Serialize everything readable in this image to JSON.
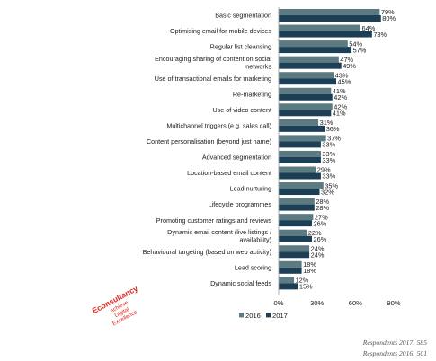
{
  "chart_data": {
    "type": "bar",
    "orientation": "horizontal",
    "categories": [
      "Basic segmentation",
      "Optimising email for mobile devices",
      "Regular list cleansing",
      "Encouraging sharing of content on social networks",
      "Use of transactional emails for marketing",
      "Re-marketing",
      "Use of video content",
      "Multichannel triggers (e.g. sales call)",
      "Content personalisation (beyond just name)",
      "Advanced segmentation",
      "Location-based email content",
      "Lead nurturing",
      "Lifecycle programmes",
      "Promoting customer ratings and reviews",
      "Dynamic email content (live listings / availability)",
      "Behavioural targeting (based on web activity)",
      "Lead scoring",
      "Dynamic social feeds"
    ],
    "series": [
      {
        "name": "2016",
        "color": "#5b7a82",
        "values": [
          79,
          64,
          54,
          47,
          43,
          41,
          42,
          31,
          37,
          33,
          29,
          35,
          28,
          27,
          22,
          24,
          18,
          12
        ]
      },
      {
        "name": "2017",
        "color": "#1c3f55",
        "values": [
          80,
          73,
          57,
          49,
          45,
          42,
          41,
          36,
          33,
          33,
          33,
          32,
          28,
          26,
          26,
          24,
          18,
          15
        ]
      }
    ],
    "value_labels": [
      [
        "79%",
        "64%",
        "54%",
        "47%",
        "43%",
        "41%",
        "42%",
        "31%",
        "37%",
        "33%",
        "29%",
        "35%",
        "28%",
        "27%",
        "22%",
        "24%",
        "18%",
        "12%"
      ],
      [
        "80%",
        "73%",
        "57%",
        "49%",
        "45%",
        "42%",
        "41%",
        "36%",
        "33%",
        "33%",
        "33%",
        "32%",
        "28%",
        "26%",
        "26%",
        "24%",
        "18%",
        "15%"
      ]
    ],
    "xticks": [
      "0%",
      "30%",
      "60%",
      "90%"
    ],
    "xticks_values": [
      0,
      30,
      60,
      90
    ],
    "xlim": [
      0,
      90
    ],
    "grid": false,
    "legend_position": "bottom-left"
  },
  "footnotes": {
    "respondents_2017": "Respondents 2017: 585",
    "respondents_2016": "Respondents 2016: 501"
  },
  "logo": {
    "name": "Econsultancy",
    "line1": "Achieve",
    "line2": "Digital",
    "line3": "Excellence"
  }
}
